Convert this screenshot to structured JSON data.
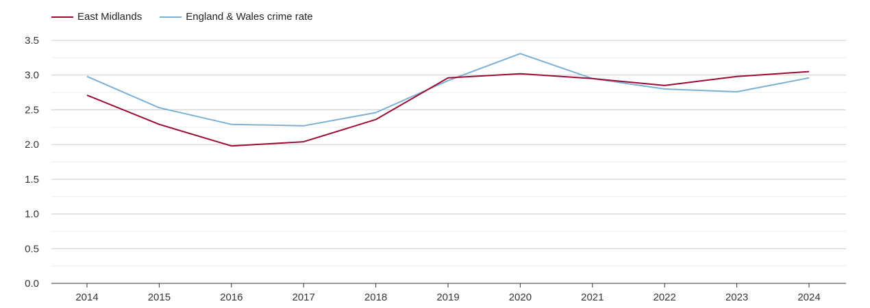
{
  "chart_data": {
    "type": "line",
    "title": "",
    "xlabel": "",
    "ylabel": "",
    "categories": [
      "2014",
      "2015",
      "2016",
      "2017",
      "2018",
      "2019",
      "2020",
      "2021",
      "2022",
      "2023",
      "2024"
    ],
    "series": [
      {
        "name": "East Midlands",
        "color": "#9b0a32",
        "values": [
          2.71,
          2.29,
          1.98,
          2.04,
          2.36,
          2.96,
          3.02,
          2.95,
          2.85,
          2.98,
          3.05
        ]
      },
      {
        "name": "England & Wales crime rate",
        "color": "#7bafd4",
        "values": [
          2.98,
          2.53,
          2.29,
          2.27,
          2.46,
          2.92,
          3.31,
          2.95,
          2.8,
          2.76,
          2.96
        ]
      }
    ],
    "ylim": [
      0,
      3.5
    ],
    "yticks": [
      "0.0",
      "0.5",
      "1.0",
      "1.5",
      "2.0",
      "2.5",
      "3.0",
      "3.5"
    ],
    "grid": true,
    "legend_position": "top-left"
  }
}
